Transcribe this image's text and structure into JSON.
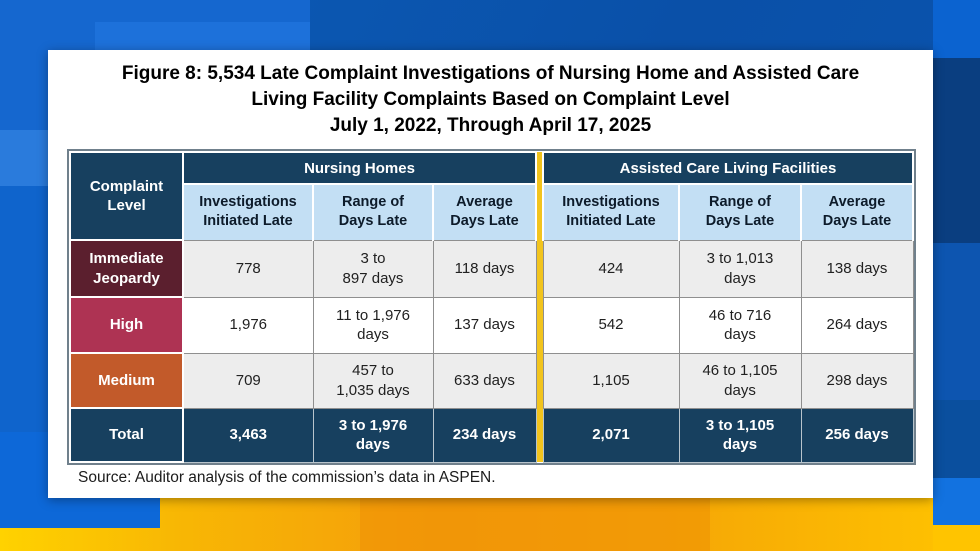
{
  "figure": {
    "title_line1": "Figure 8: 5,534 Late Complaint Investigations of Nursing Home and Assisted Care",
    "title_line2": "Living Facility Complaints Based on Complaint Level",
    "title_line3": "July 1, 2022, Through April 17, 2025",
    "source": "Source: Auditor analysis of the commission’s data in ASPEN."
  },
  "table": {
    "corner_header": "Complaint\nLevel",
    "group_headers": [
      "Nursing Homes",
      "Assisted Care Living Facilities"
    ],
    "sub_headers": [
      "Investigations\nInitiated Late",
      "Range of\nDays Late",
      "Average\nDays Late"
    ],
    "rows": [
      {
        "label": "Immediate\nJeopardy",
        "nh_inv": "778",
        "nh_range": "3 to\n897 days",
        "nh_avg": "118 days",
        "ac_inv": "424",
        "ac_range": "3 to 1,013\ndays",
        "ac_avg": "138 days"
      },
      {
        "label": "High",
        "nh_inv": "1,976",
        "nh_range": "11 to 1,976\ndays",
        "nh_avg": "137 days",
        "ac_inv": "542",
        "ac_range": "46 to 716\ndays",
        "ac_avg": "264 days"
      },
      {
        "label": "Medium",
        "nh_inv": "709",
        "nh_range": "457 to\n1,035 days",
        "nh_avg": "633 days",
        "ac_inv": "1,105",
        "ac_range": "46 to 1,105\ndays",
        "ac_avg": "298 days"
      },
      {
        "label": "Total",
        "nh_inv": "3,463",
        "nh_range": "3 to 1,976\ndays",
        "nh_avg": "234 days",
        "ac_inv": "2,071",
        "ac_range": "3 to 1,105\ndays",
        "ac_avg": "256 days"
      }
    ]
  },
  "colors": {
    "header_navy": "#17405f",
    "subheader_blue": "#c3dff4",
    "immediate_jeopardy_maroon": "#5b1f2e",
    "high_crimson": "#ae3353",
    "medium_orange": "#c25a2a",
    "total_row_navy": "#17405f",
    "divider_gold": "#f2c41d",
    "data_row_gray": "#ededed",
    "background_blue": "#0b55b0",
    "background_bottom_yellow": "#f6a806"
  },
  "chart_data": {
    "type": "table",
    "title": "Figure 8: 5,534 Late Complaint Investigations of Nursing Home and Assisted Care Living Facility Complaints Based on Complaint Level, July 1, 2022, Through April 17, 2025",
    "column_groups": [
      "Nursing Homes",
      "Assisted Care Living Facilities"
    ],
    "columns": [
      "Complaint Level",
      "Nursing Homes - Investigations Initiated Late",
      "Nursing Homes - Range of Days Late",
      "Nursing Homes - Average Days Late",
      "Assisted Care Living Facilities - Investigations Initiated Late",
      "Assisted Care Living Facilities - Range of Days Late",
      "Assisted Care Living Facilities - Average Days Late"
    ],
    "rows": [
      [
        "Immediate Jeopardy",
        778,
        "3 to 897 days",
        "118 days",
        424,
        "3 to 1,013 days",
        "138 days"
      ],
      [
        "High",
        1976,
        "11 to 1,976 days",
        "137 days",
        542,
        "46 to 716 days",
        "264 days"
      ],
      [
        "Medium",
        709,
        "457 to 1,035 days",
        "633 days",
        1105,
        "46 to 1,105 days",
        "298 days"
      ],
      [
        "Total",
        3463,
        "3 to 1,976 days",
        "234 days",
        2071,
        "3 to 1,105 days",
        "256 days"
      ]
    ],
    "source": "Auditor analysis of the commission’s data in ASPEN"
  }
}
